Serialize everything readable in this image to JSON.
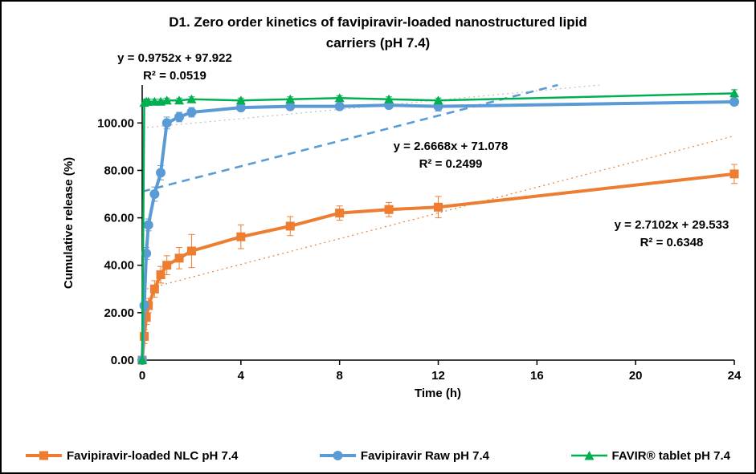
{
  "title": {
    "line1": "D1. Zero order kinetics of favipiravir-loaded nanostructured lipid",
    "line2": "carriers (pH 7.4)"
  },
  "axes": {
    "x_label": "Time (h)",
    "y_label": "Cumulative release (%)",
    "x_ticks": [
      "0",
      "4",
      "8",
      "12",
      "16",
      "20",
      "24"
    ],
    "y_ticks": [
      "0.00",
      "20.00",
      "40.00",
      "60.00",
      "80.00",
      "100.00"
    ]
  },
  "annotations": [
    {
      "eq": "y = 0.9752x + 97.922",
      "r2": "R² = 0.0519"
    },
    {
      "eq": "y = 2.6668x + 71.078",
      "r2": "R² = 0.2499"
    },
    {
      "eq": "y = 2.7102x + 29.533",
      "r2": "R² = 0.6348"
    }
  ],
  "legend": [
    {
      "label": "Favipiravir-loaded NLC pH 7.4",
      "color": "#ED7D31",
      "marker": "square",
      "key": "favipiravir-nlc"
    },
    {
      "label": "Favipiravir Raw pH 7.4",
      "color": "#5B9BD5",
      "marker": "circle",
      "key": "favipiravir-raw"
    },
    {
      "label": "FAVIR® tablet pH 7.4",
      "color": "#00B050",
      "marker": "triangle",
      "key": "favir-tablet"
    }
  ],
  "colors": {
    "nlc_orange": "#ED7D31",
    "raw_blue": "#5B9BD5",
    "tablet_green": "#00B050",
    "trendline_gray": "#BFBFBF",
    "axis_black": "#000000"
  },
  "chart_data": {
    "type": "line",
    "title": "D1. Zero order kinetics of favipiravir-loaded nanostructured lipid carriers (pH 7.4)",
    "xlabel": "Time (h)",
    "ylabel": "Cumulative release (%)",
    "xlim": [
      0,
      24
    ],
    "ylim": [
      0,
      116
    ],
    "grid": false,
    "legend_position": "bottom",
    "x": [
      0,
      0.083,
      0.167,
      0.25,
      0.5,
      0.75,
      1,
      1.5,
      2,
      4,
      6,
      8,
      10,
      12,
      24
    ],
    "series": [
      {
        "name": "Favipiravir-loaded NLC pH 7.4",
        "key": "favipiravir-nlc",
        "color": "#ED7D31",
        "marker": "square",
        "line_width": 4,
        "values": [
          0,
          10,
          18,
          23,
          30,
          36,
          40,
          43,
          46,
          52,
          56.5,
          62,
          63.5,
          64.5,
          78.5
        ],
        "errors": [
          0,
          3,
          3,
          3,
          3.5,
          3.5,
          4,
          4.5,
          7,
          5,
          4,
          3,
          3,
          4.5,
          4
        ]
      },
      {
        "name": "Favipiravir Raw pH 7.4",
        "key": "favipiravir-raw",
        "color": "#5B9BD5",
        "marker": "circle",
        "line_width": 4,
        "values": [
          0,
          23,
          45,
          57,
          70,
          79,
          100,
          102.5,
          104.5,
          106.5,
          107,
          107,
          107.5,
          107,
          108.9
        ],
        "errors": [
          0,
          2,
          2.5,
          2.5,
          3,
          3,
          2.5,
          2,
          2,
          1.5,
          1.5,
          1.5,
          1.5,
          2,
          1.5
        ]
      },
      {
        "name": "FAVIR® tablet pH 7.4",
        "key": "favir-tablet",
        "color": "#00B050",
        "marker": "triangle",
        "line_width": 2.5,
        "values": [
          0,
          108.5,
          109,
          109,
          109,
          109,
          109.5,
          109.5,
          110,
          109.5,
          110,
          110.5,
          110,
          109.5,
          112.5
        ],
        "errors": [
          0,
          1,
          1,
          1,
          1,
          1,
          1,
          1,
          1,
          1,
          1,
          1,
          1,
          1,
          1.5
        ]
      }
    ],
    "trendlines": [
      {
        "series": "favir-tablet",
        "slope": 0.9752,
        "intercept": 97.922,
        "r2": 0.0519,
        "color": "#BFBFBF",
        "dash": "dotted"
      },
      {
        "series": "favipiravir-raw",
        "slope": 2.6668,
        "intercept": 71.078,
        "r2": 0.2499,
        "color": "#5B9BD5",
        "dash": "dashed"
      },
      {
        "series": "favipiravir-nlc",
        "slope": 2.7102,
        "intercept": 29.533,
        "r2": 0.6348,
        "color": "#ED7D31",
        "dash": "dotted"
      }
    ]
  }
}
